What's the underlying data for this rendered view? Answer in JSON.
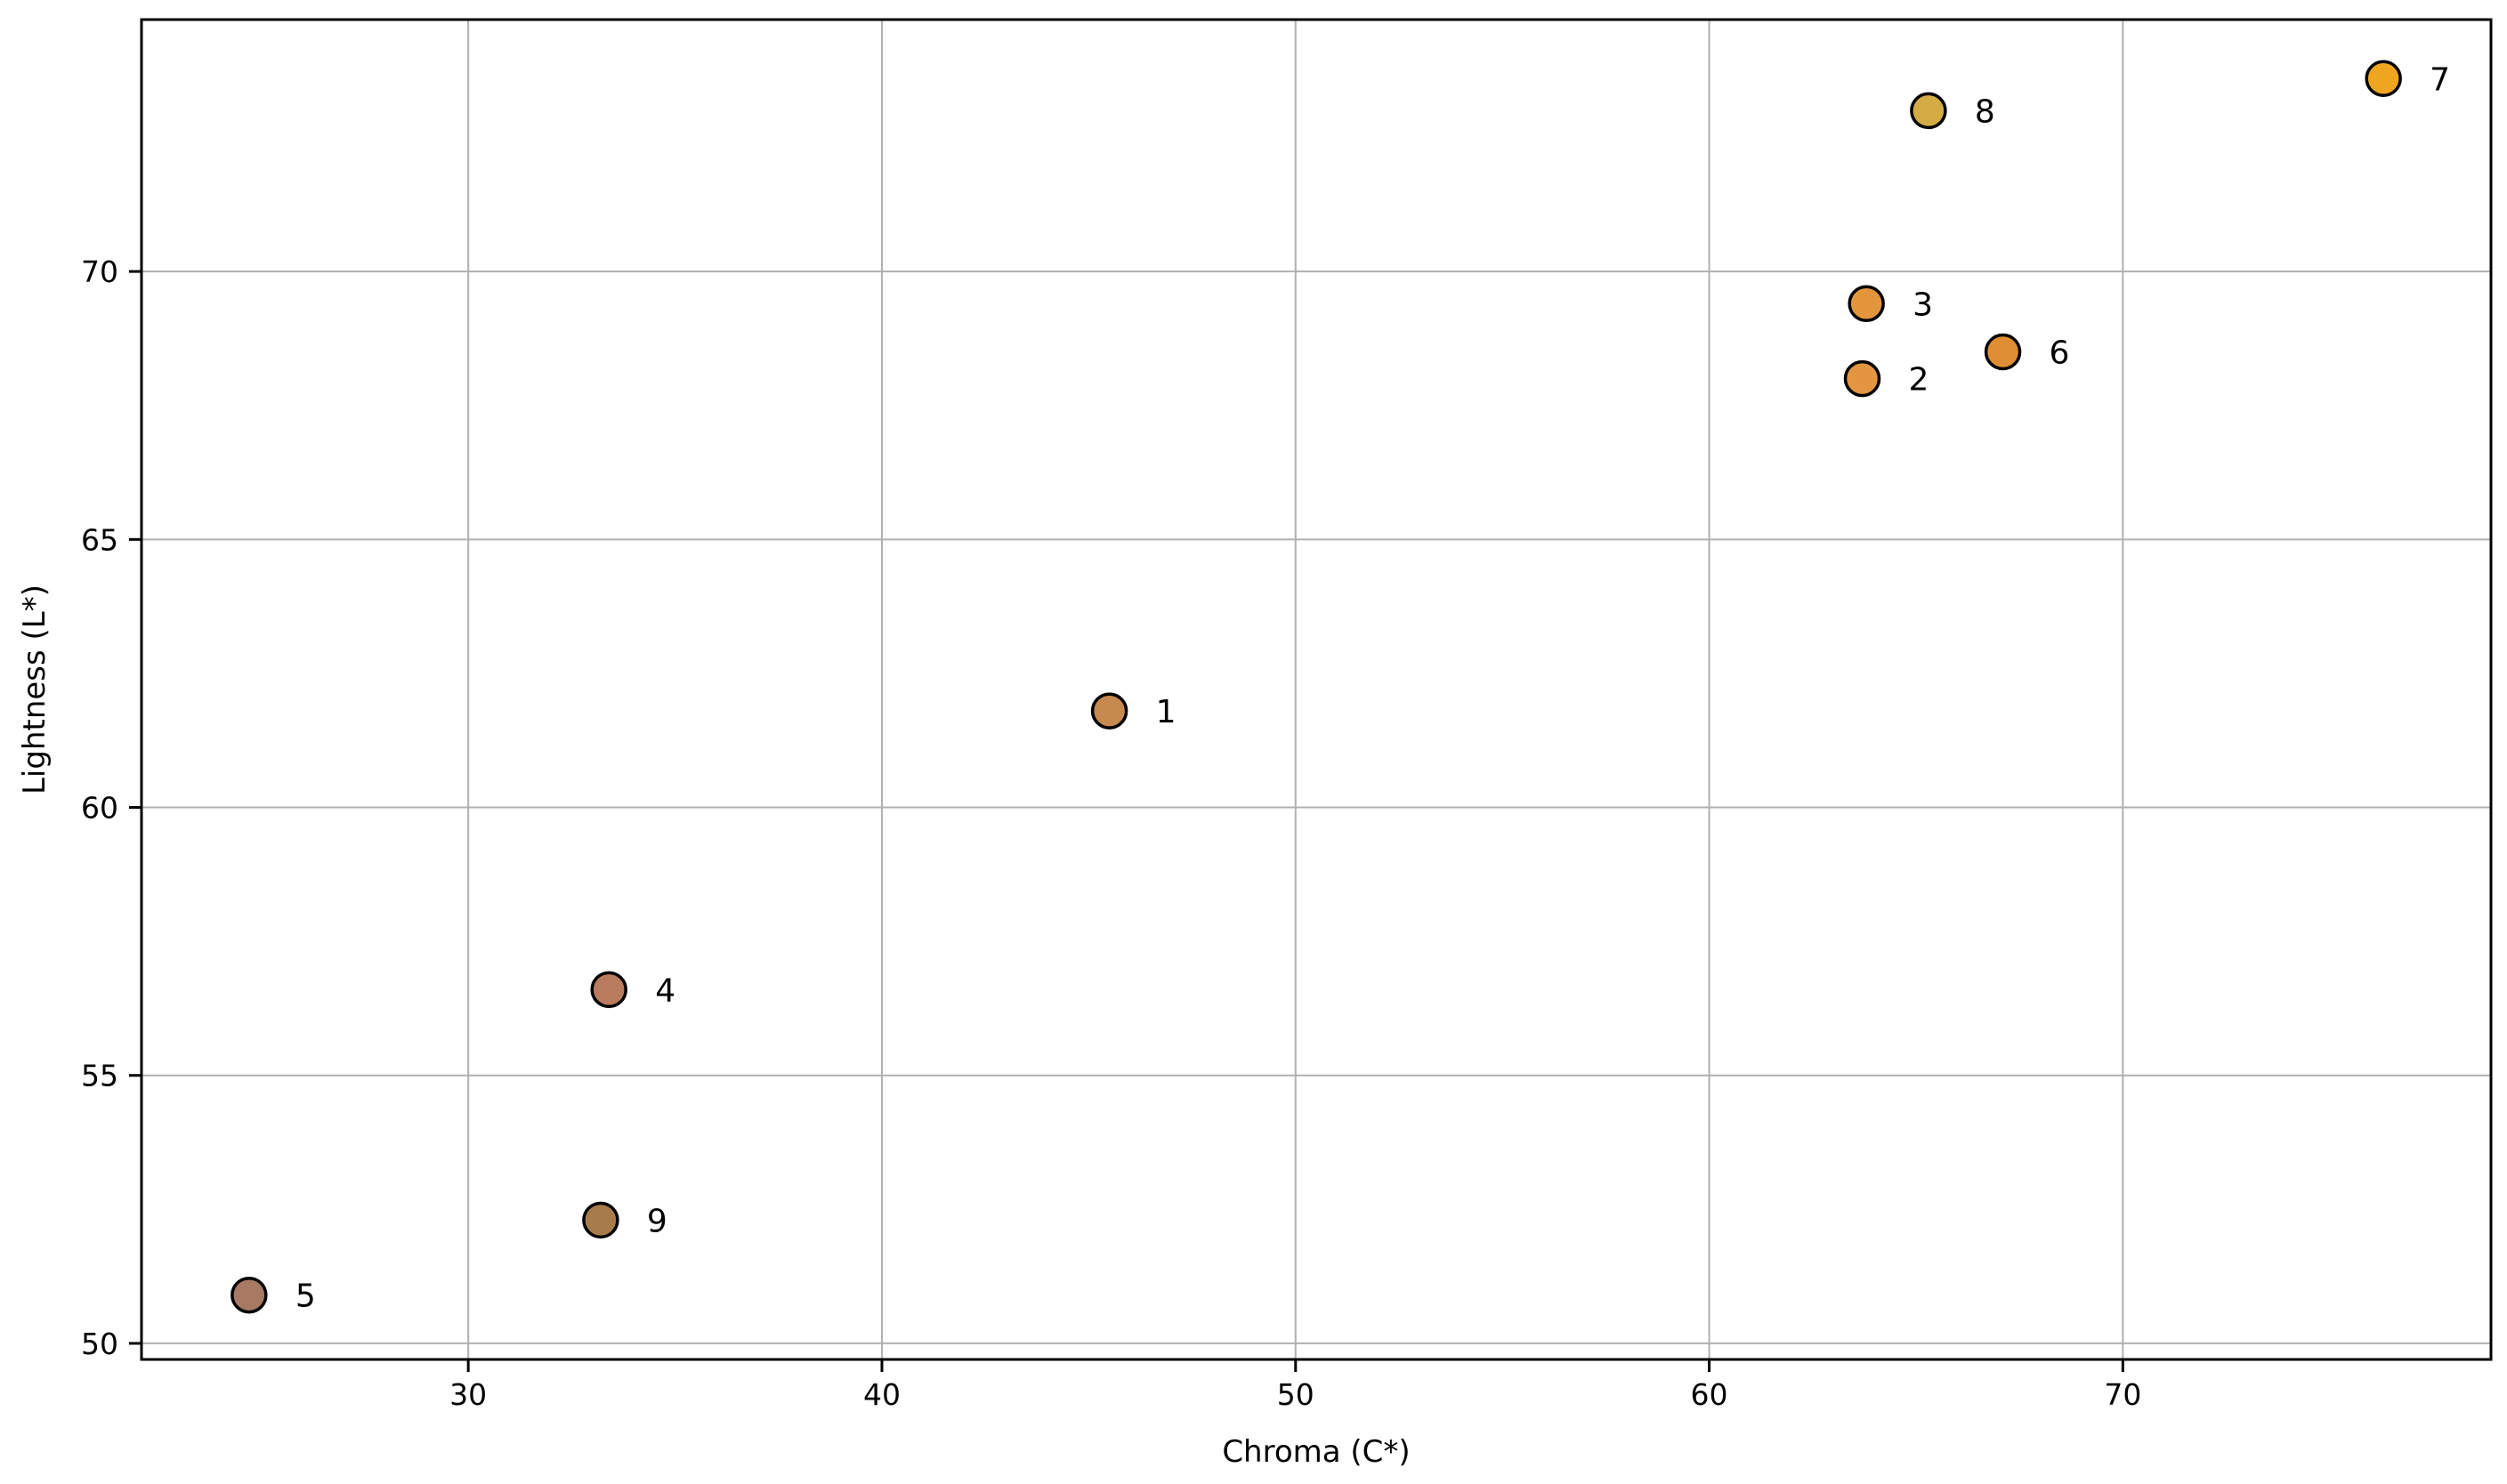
{
  "chart_data": {
    "type": "scatter",
    "title": "",
    "xlabel": "Chroma (C*)",
    "ylabel": "Lightness (L*)",
    "xlim": [
      22.1,
      78.9
    ],
    "ylim": [
      49.7,
      74.7
    ],
    "xticks": [
      30,
      40,
      50,
      60,
      70
    ],
    "yticks": [
      50,
      55,
      60,
      65,
      70
    ],
    "grid": true,
    "grid_color": "#b0b0b0",
    "background_color": "#ffffff",
    "spine_color": "#000000",
    "marker_edge_color": "#000000",
    "points": [
      {
        "label": "1",
        "x": 45.5,
        "y": 61.8,
        "color": "#C68A4F"
      },
      {
        "label": "2",
        "x": 63.7,
        "y": 68.0,
        "color": "#E3953F"
      },
      {
        "label": "3",
        "x": 63.8,
        "y": 69.4,
        "color": "#E3953C"
      },
      {
        "label": "4",
        "x": 33.4,
        "y": 56.6,
        "color": "#BA7C5F"
      },
      {
        "label": "5",
        "x": 24.7,
        "y": 50.9,
        "color": "#A87A64"
      },
      {
        "label": "6",
        "x": 67.1,
        "y": 68.5,
        "color": "#E08E33"
      },
      {
        "label": "7",
        "x": 76.3,
        "y": 73.6,
        "color": "#EEA51F"
      },
      {
        "label": "8",
        "x": 65.3,
        "y": 73.0,
        "color": "#D4AC44"
      },
      {
        "label": "9",
        "x": 33.2,
        "y": 52.3,
        "color": "#A87B4B"
      }
    ]
  }
}
